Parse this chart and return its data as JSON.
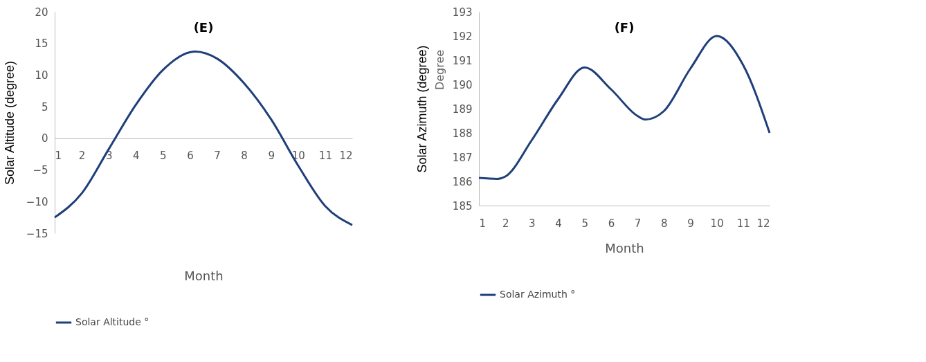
{
  "chart_data": [
    {
      "type": "line",
      "title": "(E)",
      "xlabel": "Month",
      "ylabel": "Solar Altitude (degree)",
      "x": [
        1,
        2,
        3,
        4,
        5,
        6,
        6.2,
        7,
        8,
        9,
        10,
        11,
        12
      ],
      "series": [
        {
          "name": "Solar Altitude °",
          "color": "#1f3f7a",
          "values": [
            -12.5,
            -8.7,
            -1.7,
            5.3,
            10.8,
            13.6,
            13.7,
            12.6,
            8.7,
            3,
            -4.3,
            -10.7,
            -13.7
          ]
        }
      ],
      "xlim": [
        1,
        12
      ],
      "xticks": [
        1,
        2,
        3,
        4,
        5,
        6,
        7,
        8,
        9,
        10,
        11,
        12
      ],
      "ylim": [
        -15,
        20
      ],
      "yticks": [
        -15,
        -10,
        -5,
        0,
        5,
        10,
        15,
        20
      ],
      "grid": false,
      "legend": "bottom",
      "marker": "none",
      "line_style": "solid"
    },
    {
      "type": "line",
      "title": "(F)",
      "xlabel": "Month",
      "ylabel": "Solar Azimuth (degree)",
      "annotations": [
        "Degree"
      ],
      "x": [
        1,
        1.7,
        2,
        3,
        4,
        5,
        6,
        7,
        7.3,
        8,
        9,
        10,
        11,
        12
      ],
      "series": [
        {
          "name": "Solar Azimuth °",
          "color": "#1f3f7a",
          "values": [
            186.14,
            186.1,
            186.2,
            187.7,
            189.4,
            190.7,
            189.8,
            188.7,
            188.55,
            188.9,
            190.65,
            192.0,
            190.8,
            188.0
          ]
        }
      ],
      "xlim": [
        1,
        12
      ],
      "xticks": [
        1,
        2,
        3,
        4,
        5,
        6,
        7,
        8,
        9,
        10,
        11,
        12
      ],
      "ylim": [
        185,
        193
      ],
      "yticks": [
        185,
        186,
        187,
        188,
        189,
        190,
        191,
        192,
        193
      ],
      "grid": false,
      "legend": "bottom",
      "marker": "none",
      "line_style": "solid"
    }
  ]
}
